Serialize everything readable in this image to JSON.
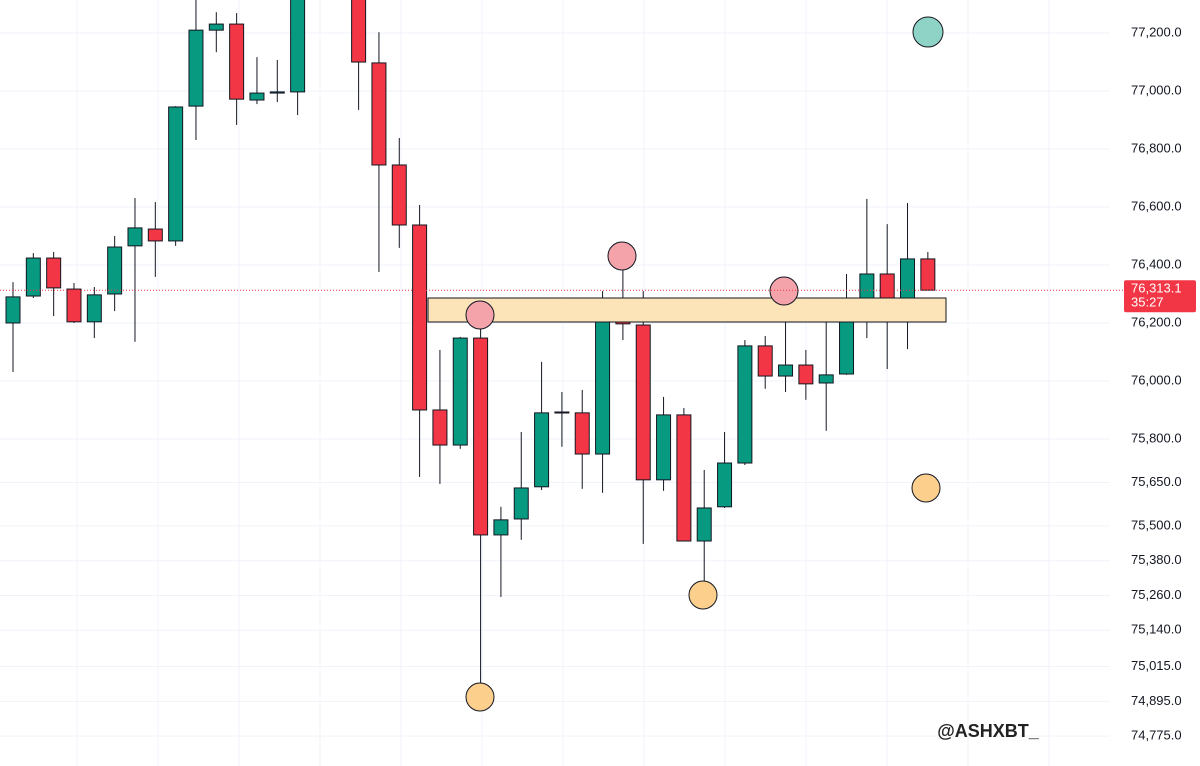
{
  "chart_data": {
    "type": "candlestick",
    "up_color": "#089981",
    "down_color": "#f23645",
    "ylim": [
      74672,
      77314
    ],
    "yticks": [
      {
        "value": 77200,
        "label": "77,200.0"
      },
      {
        "value": 77000,
        "label": "77,000.0"
      },
      {
        "value": 76800,
        "label": "76,800.0"
      },
      {
        "value": 76600,
        "label": "76,600.0"
      },
      {
        "value": 76400,
        "label": "76,400.0"
      },
      {
        "value": 76200,
        "label": "76,200.0"
      },
      {
        "value": 76000,
        "label": "76,000.0"
      },
      {
        "value": 75800,
        "label": "75,800.0"
      },
      {
        "value": 75650,
        "label": "75,650.0"
      },
      {
        "value": 75500,
        "label": "75,500.0"
      },
      {
        "value": 75380,
        "label": "75,380.0"
      },
      {
        "value": 75260,
        "label": "75,260.0"
      },
      {
        "value": 75140,
        "label": "75,140.0"
      },
      {
        "value": 75015,
        "label": "75,015.0"
      },
      {
        "value": 74895,
        "label": "74,895.0"
      },
      {
        "value": 74775,
        "label": "74,775.0"
      }
    ],
    "grid": true,
    "open": [
      76200,
      76293,
      76424,
      76317,
      76204,
      76300,
      76466,
      76524,
      76483,
      76948,
      77210,
      77231,
      76969,
      76993,
      76997,
      null,
      null,
      77340,
      77097,
      76745,
      76538,
      75900,
      75779,
      76148,
      75469,
      75524,
      75635,
      75890,
      75890,
      75748,
      76207,
      76193,
      75659,
      75883,
      75448,
      75566,
      75717,
      76121,
      76017,
      76055,
      75993,
      76024,
      76255,
      76369,
      76255,
      76421
    ],
    "high": [
      76341,
      76441,
      76445,
      76338,
      76324,
      76500,
      76631,
      76617,
      76948,
      77330,
      77272,
      77269,
      77117,
      77107,
      77380,
      null,
      null,
      77370,
      77203,
      76838,
      76607,
      76107,
      76152,
      76224,
      75566,
      75824,
      76066,
      75962,
      75969,
      76310,
      76431,
      76310,
      75945,
      75907,
      75693,
      75824,
      76141,
      76155,
      76310,
      76107,
      76217,
      76369,
      76628,
      76541,
      76614,
      76445
    ],
    "low": [
      76031,
      76286,
      76224,
      76200,
      76148,
      76241,
      76135,
      76359,
      76466,
      76831,
      77134,
      76883,
      76955,
      76962,
      76917,
      null,
      null,
      76935,
      76376,
      76459,
      75669,
      75645,
      75766,
      74911,
      75255,
      75452,
      75624,
      75773,
      75628,
      75614,
      76141,
      75438,
      75621,
      75448,
      75262,
      75562,
      75710,
      75973,
      75962,
      75935,
      75828,
      76021,
      76148,
      76041,
      76110,
      76313.1
    ],
    "close": [
      76290,
      76424,
      76321,
      76204,
      76297,
      76462,
      76528,
      76483,
      76945,
      77210,
      77231,
      76972,
      76993,
      76997,
      77350,
      null,
      null,
      77100,
      76745,
      76538,
      75900,
      75779,
      76148,
      75469,
      75521,
      75631,
      75890,
      75893,
      75748,
      76207,
      76197,
      75659,
      75883,
      75448,
      75562,
      75717,
      76121,
      76017,
      76055,
      75990,
      76021,
      76252,
      76369,
      76255,
      76421,
      76313.1
    ],
    "current_price": 76313.1,
    "current_price_label": "76,313.1",
    "countdown": "35:27",
    "watermark": "@ASHXBT_"
  }
}
